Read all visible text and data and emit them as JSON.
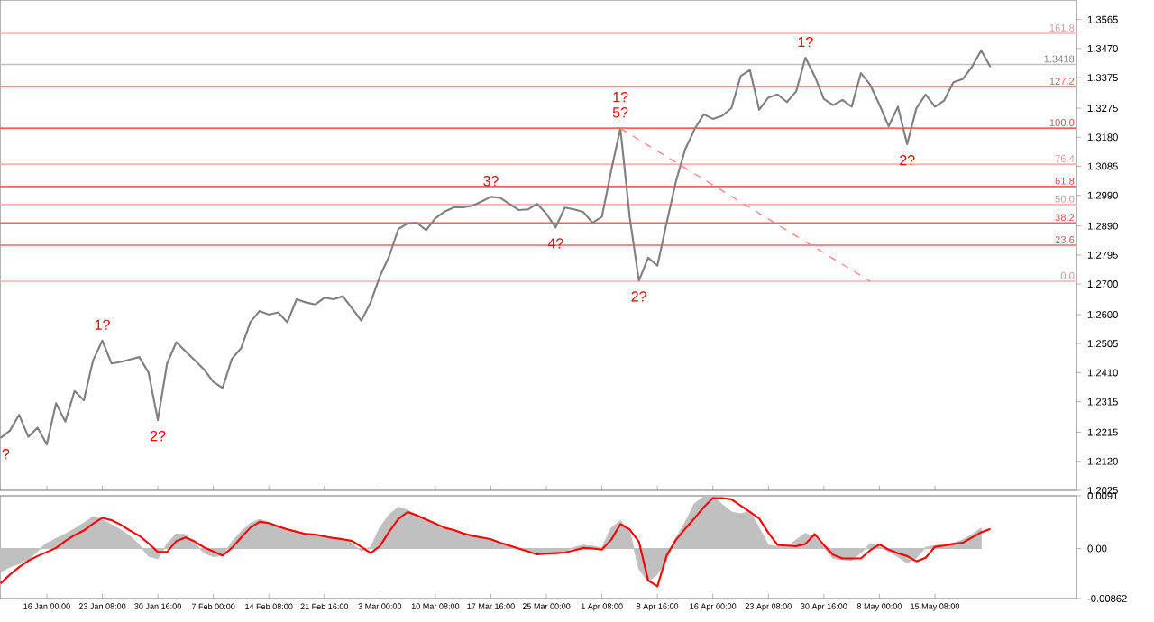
{
  "chart_data": [
    {
      "type": "line",
      "tick_labels": "y",
      "ylim": [
        1.2025,
        1.3629
      ],
      "yticks": [
        {
          "value": 1.2025,
          "label": "1.2025"
        },
        {
          "value": 1.212,
          "label": "1.2120"
        },
        {
          "value": 1.2215,
          "label": "1.2215"
        },
        {
          "value": 1.2315,
          "label": "1.2315"
        },
        {
          "value": 1.241,
          "label": "1.2410"
        },
        {
          "value": 1.2505,
          "label": "1.2505"
        },
        {
          "value": 1.26,
          "label": "1.2600"
        },
        {
          "value": 1.27,
          "label": "1.2700"
        },
        {
          "value": 1.2795,
          "label": "1.2795"
        },
        {
          "value": 1.289,
          "label": "1.2890"
        },
        {
          "value": 1.299,
          "label": "1.2990"
        },
        {
          "value": 1.3085,
          "label": "1.3085"
        },
        {
          "value": 1.318,
          "label": "1.3180"
        },
        {
          "value": 1.3275,
          "label": "1.3275"
        },
        {
          "value": 1.3375,
          "label": "1.3375"
        },
        {
          "value": 1.347,
          "label": "1.3470"
        },
        {
          "value": 1.3565,
          "label": "1.3565"
        }
      ],
      "series": [
        {
          "color": "#808080",
          "values": [
            1.2196,
            1.222,
            1.2272,
            1.22,
            1.223,
            1.2175,
            1.231,
            1.225,
            1.235,
            1.232,
            1.245,
            1.2515,
            1.244,
            1.2445,
            1.2453,
            1.2461,
            1.241,
            1.2255,
            1.244,
            1.251,
            1.248,
            1.245,
            1.242,
            1.238,
            1.236,
            1.2455,
            1.249,
            1.2575,
            1.2612,
            1.26,
            1.2607,
            1.2575,
            1.265,
            1.264,
            1.2633,
            1.2655,
            1.265,
            1.266,
            1.262,
            1.258,
            1.264,
            1.2725,
            1.279,
            1.288,
            1.2898,
            1.29,
            1.2876,
            1.2915,
            1.2937,
            1.2951,
            1.2951,
            1.2956,
            1.297,
            1.2985,
            1.2982,
            1.2962,
            1.2942,
            1.2944,
            1.2962,
            1.293,
            1.2885,
            1.295,
            1.2944,
            1.2935,
            1.29,
            1.292,
            1.307,
            1.3209,
            1.292,
            1.2711,
            1.2786,
            1.276,
            1.29,
            1.3035,
            1.314,
            1.3205,
            1.3255,
            1.324,
            1.325,
            1.3275,
            1.338,
            1.34,
            1.327,
            1.331,
            1.332,
            1.3295,
            1.333,
            1.344,
            1.338,
            1.3305,
            1.3285,
            1.3302,
            1.328,
            1.339,
            1.3352,
            1.3287,
            1.3216,
            1.328,
            1.3157,
            1.3275,
            1.332,
            1.328,
            1.33,
            1.336,
            1.337,
            1.341,
            1.3464,
            1.341,
            null,
            null,
            null,
            null,
            null,
            null,
            null,
            null,
            null
          ]
        },
        {
          "color": "#ff8080",
          "line_style": "dashed",
          "values": [
            null,
            null,
            null,
            null,
            null,
            null,
            null,
            null,
            null,
            null,
            null,
            null,
            null,
            null,
            null,
            null,
            null,
            null,
            null,
            null,
            null,
            null,
            null,
            null,
            null,
            null,
            null,
            null,
            null,
            null,
            null,
            null,
            null,
            null,
            null,
            null,
            null,
            null,
            null,
            null,
            null,
            null,
            null,
            null,
            null,
            null,
            null,
            null,
            null,
            null,
            null,
            null,
            null,
            null,
            null,
            null,
            null,
            null,
            null,
            null,
            null,
            null,
            null,
            null,
            null,
            null,
            null,
            1.3209,
            null,
            null,
            null,
            null,
            null,
            null,
            null,
            null,
            null,
            null,
            null,
            null,
            null,
            null,
            null,
            null,
            null,
            null,
            null,
            null,
            null,
            null,
            null,
            null,
            null,
            null,
            1.2709,
            null,
            null,
            null,
            null,
            null,
            null,
            null,
            null,
            null,
            null,
            null,
            null,
            null,
            null,
            null,
            null,
            null,
            null,
            null,
            null,
            null,
            null
          ]
        }
      ],
      "ref_lines": [
        {
          "axis": "y",
          "value": 1.3418,
          "label": "1.3418",
          "color": "#c0c0c0"
        },
        {
          "axis": "y",
          "value": 1.352,
          "color": "#ffb0b0"
        },
        {
          "axis": "y",
          "value": 1.3346,
          "color": "#ff6060"
        },
        {
          "axis": "y",
          "value": 1.321,
          "color": "#ff6060"
        },
        {
          "axis": "y",
          "value": 1.3092,
          "color": "#ffb0b0"
        },
        {
          "axis": "y",
          "value": 1.3019,
          "color": "#ff6060"
        },
        {
          "axis": "y",
          "value": 1.296,
          "color": "#ffb0b0"
        },
        {
          "axis": "y",
          "value": 1.29,
          "color": "#ff6060"
        },
        {
          "axis": "y",
          "value": 1.2827,
          "color": "#ff6060"
        },
        {
          "axis": "y",
          "value": 1.2709,
          "color": "#ffb0b0"
        }
      ],
      "annotations": [
        {
          "text": "?",
          "y": 1.2196
        },
        {
          "text": "1?",
          "y": 1.2515
        },
        {
          "text": "2?",
          "y": 1.2255
        },
        {
          "text": "3?",
          "y": 1.2985
        },
        {
          "text": "4?",
          "y": 1.2885
        },
        {
          "text": "5?",
          "y": 1.3209
        },
        {
          "text": "1?",
          "y": 1.3209
        },
        {
          "text": "2?",
          "y": 1.2711
        },
        {
          "text": "1?",
          "y": 1.344
        },
        {
          "text": "2?",
          "y": 1.3157
        },
        {
          "text": "161.8",
          "y": 1.352
        },
        {
          "text": "127.2",
          "y": 1.3346
        },
        {
          "text": "100.0",
          "y": 1.321
        },
        {
          "text": "76.4",
          "y": 1.3092
        },
        {
          "text": "61.8",
          "y": 1.3019
        },
        {
          "text": "50.0",
          "y": 1.296
        },
        {
          "text": "38.2",
          "y": 1.29
        },
        {
          "text": "23.6",
          "y": 1.2827
        },
        {
          "text": "0.0",
          "y": 1.2709
        }
      ]
    },
    {
      "type": "area",
      "categories": [
        null,
        null,
        null,
        null,
        null,
        "16 Jan 00:00",
        null,
        null,
        null,
        null,
        null,
        "23 Jan 08:00",
        null,
        null,
        null,
        null,
        null,
        "30 Jan 16:00",
        null,
        null,
        null,
        null,
        null,
        "7 Feb 00:00",
        null,
        null,
        null,
        null,
        null,
        "14 Feb 08:00",
        null,
        null,
        null,
        null,
        null,
        "21 Feb 16:00",
        null,
        null,
        null,
        null,
        null,
        "3 Mar 00:00",
        null,
        null,
        null,
        null,
        null,
        "10 Mar 08:00",
        null,
        null,
        null,
        null,
        null,
        "17 Mar 16:00",
        null,
        null,
        null,
        null,
        null,
        "25 Mar 00:00",
        null,
        null,
        null,
        null,
        null,
        "1 Apr 08:00",
        null,
        null,
        null,
        null,
        null,
        "8 Apr 16:00",
        null,
        null,
        null,
        null,
        null,
        "16 Apr 00:00",
        null,
        null,
        null,
        null,
        null,
        "23 Apr 08:00",
        null,
        null,
        null,
        null,
        null,
        "30 Apr 16:00",
        null,
        null,
        null,
        null,
        null,
        "8 May 00:00",
        null,
        null,
        null,
        null,
        null,
        "15 May 08:00",
        null,
        null,
        null,
        null,
        null,
        null,
        null,
        null,
        null,
        null,
        null,
        null,
        null,
        null,
        null
      ],
      "ylim": [
        -0.00862,
        0.0091
      ],
      "yticks": [
        {
          "value": -0.00862,
          "label": "-0.00862"
        },
        {
          "value": 0,
          "label": "0.00"
        },
        {
          "value": 0.0091,
          "label": "0.0091"
        }
      ],
      "series": [
        {
          "color": "#c0c0c0",
          "values": [
            -0.004,
            -0.0032,
            -0.0026,
            -0.0019,
            -0.0004,
            0.0009,
            0.0017,
            0.0025,
            0.0034,
            0.0044,
            0.0055,
            0.005,
            0.0041,
            0.0032,
            0.0021,
            0.0006,
            -0.0013,
            -0.0018,
            0.0008,
            0.0025,
            0.0024,
            0.0008,
            -0.0007,
            -0.0014,
            -0.0012,
            0.0011,
            0.0029,
            0.0043,
            0.005,
            0.0045,
            0.0039,
            0.0034,
            0.0029,
            0.0025,
            0.0023,
            0.0021,
            0.0019,
            0.0017,
            0.0008,
            -0.0004,
            0.0002,
            0.0036,
            0.0058,
            0.0071,
            0.0066,
            0.0058,
            0.005,
            0.0042,
            0.0036,
            0.0032,
            0.0027,
            0.0022,
            0.0018,
            0.0014,
            0.0009,
            0.0005,
            0.0001,
            -0.0003,
            -0.0007,
            -0.0008,
            -0.001,
            -0.0005,
            0.0002,
            0.0006,
            0.0004,
            0.0001,
            0.0035,
            0.0048,
            0.003,
            -0.0035,
            -0.0057,
            -0.0044,
            -0.002,
            0.0017,
            0.0045,
            0.0077,
            0.0089,
            0.009,
            0.0076,
            0.0063,
            0.006,
            0.0064,
            0.0035,
            0.0006,
            0.0003,
            0.0003,
            0.0015,
            0.0026,
            0.002,
            0.0002,
            -0.0017,
            -0.0019,
            -0.002,
            -0.0007,
            0.0008,
            0.0003,
            -0.0005,
            -0.0014,
            -0.0025,
            -0.0016,
            0.0002,
            0.0005,
            0.0007,
            0.0009,
            0.0015,
            0.0024,
            0.0035,
            null,
            null,
            null,
            null,
            null,
            null,
            null,
            null,
            null,
            null
          ]
        },
        {
          "type": "line",
          "color": "#ff0000",
          "values": [
            -0.006,
            -0.0045,
            -0.0032,
            -0.0021,
            -0.0013,
            -0.0006,
            0.0001,
            0.0013,
            0.0023,
            0.0031,
            0.0043,
            0.0053,
            0.0049,
            0.0041,
            0.0031,
            0.0022,
            0.0009,
            -0.0006,
            -0.0006,
            0.0013,
            0.0019,
            0.0012,
            0.0002,
            -0.0005,
            -0.0012,
            0.0001,
            0.0019,
            0.0036,
            0.0046,
            0.0044,
            0.0038,
            0.0033,
            0.0029,
            0.0025,
            0.0024,
            0.0021,
            0.0018,
            0.0016,
            0.0013,
            0.0003,
            -0.0008,
            0.0004,
            0.0029,
            0.0051,
            0.0063,
            0.0057,
            0.005,
            0.0043,
            0.0036,
            0.0032,
            0.0026,
            0.0022,
            0.0019,
            0.0016,
            0.001,
            0.0005,
            0,
            -0.0005,
            -0.001,
            -0.0009,
            -0.0008,
            -0.0007,
            -0.0003,
            0.0001,
            0,
            -0.0002,
            0.0015,
            0.0042,
            0.0033,
            0.0012,
            -0.0055,
            -0.0065,
            -0.0012,
            0.0015,
            0.0034,
            0.0052,
            0.0071,
            0.0087,
            0.0087,
            0.0085,
            0.0074,
            0.0063,
            0.0052,
            0.0027,
            0.0006,
            0.0005,
            0.0004,
            0.0008,
            0.0025,
            0.0006,
            -0.0011,
            -0.0017,
            -0.0017,
            -0.0017,
            -0.0003,
            0.0007,
            -0.0002,
            -0.0008,
            -0.0013,
            -0.0022,
            -0.0016,
            0.0003,
            0.0005,
            0.0008,
            0.001,
            0.0019,
            0.0028,
            0.0034,
            null,
            null,
            null,
            null,
            null,
            null,
            null,
            null,
            null
          ]
        }
      ]
    }
  ]
}
